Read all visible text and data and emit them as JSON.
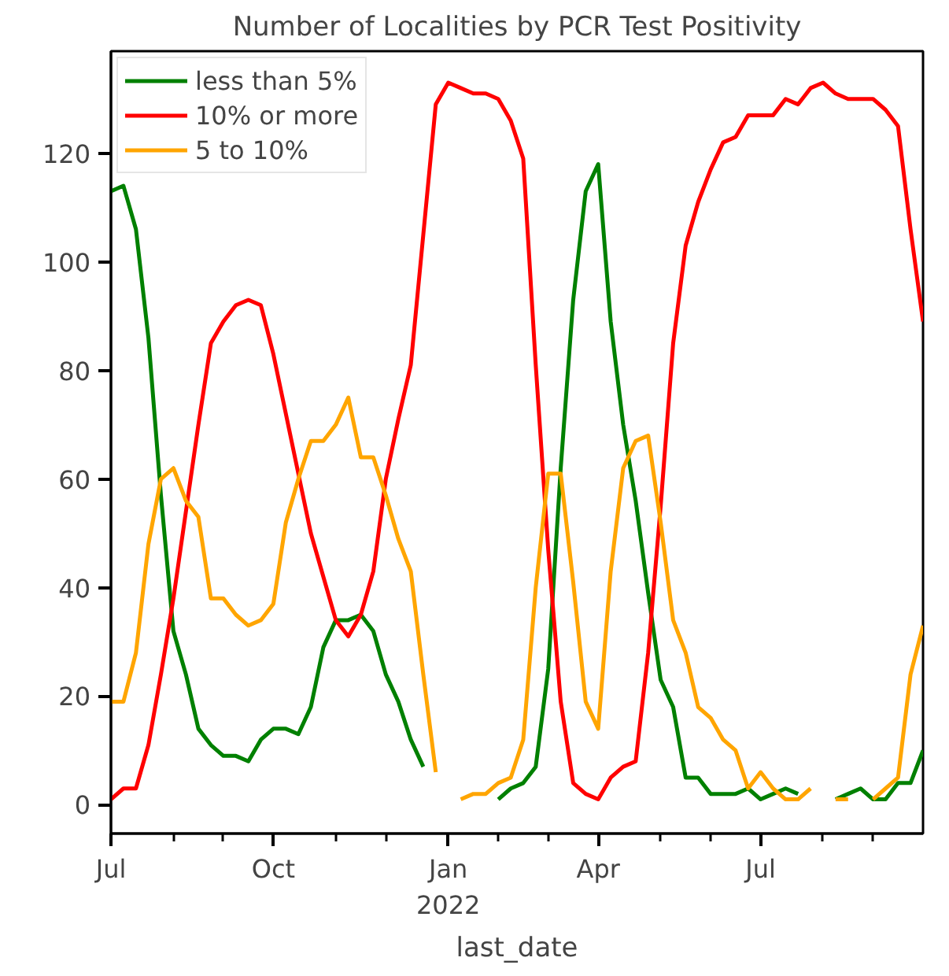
{
  "chart_data": {
    "type": "line",
    "title": "Number of Localities by PCR Test Positivity",
    "xlabel": "last_date",
    "x": [
      "2021-07-04",
      "2021-07-11",
      "2021-07-18",
      "2021-07-25",
      "2021-08-01",
      "2021-08-08",
      "2021-08-15",
      "2021-08-22",
      "2021-08-29",
      "2021-09-05",
      "2021-09-12",
      "2021-09-19",
      "2021-09-26",
      "2021-10-03",
      "2021-10-10",
      "2021-10-17",
      "2021-10-24",
      "2021-10-31",
      "2021-11-07",
      "2021-11-14",
      "2021-11-21",
      "2021-11-28",
      "2021-12-05",
      "2021-12-12",
      "2021-12-19",
      "2021-12-26",
      "2022-01-02",
      "2022-01-09",
      "2022-01-16",
      "2022-01-23",
      "2022-01-30",
      "2022-02-06",
      "2022-02-13",
      "2022-02-20",
      "2022-02-27",
      "2022-03-06",
      "2022-03-13",
      "2022-03-20",
      "2022-03-27",
      "2022-04-03",
      "2022-04-10",
      "2022-04-17",
      "2022-04-24",
      "2022-05-01",
      "2022-05-08",
      "2022-05-15",
      "2022-05-22",
      "2022-05-29",
      "2022-06-05",
      "2022-06-12",
      "2022-06-19",
      "2022-06-26",
      "2022-07-03",
      "2022-07-10",
      "2022-07-17",
      "2022-07-24",
      "2022-07-31",
      "2022-08-07",
      "2022-08-14",
      "2022-08-21",
      "2022-08-28",
      "2022-09-04",
      "2022-09-11",
      "2022-09-18",
      "2022-09-25",
      "2022-10-02"
    ],
    "series": [
      {
        "name": "less than 5%",
        "color": "#008000",
        "values": [
          113,
          114,
          106,
          86,
          57,
          32,
          24,
          14,
          11,
          9,
          9,
          8,
          12,
          14,
          14,
          13,
          18,
          29,
          34,
          34,
          35,
          32,
          24,
          19,
          12,
          7,
          null,
          null,
          null,
          null,
          null,
          1,
          3,
          4,
          7,
          25,
          62,
          93,
          113,
          118,
          89,
          70,
          56,
          39,
          23,
          18,
          5,
          5,
          2,
          2,
          2,
          3,
          1,
          2,
          3,
          2,
          null,
          null,
          1,
          2,
          3,
          1,
          1,
          4,
          4,
          10
        ]
      },
      {
        "name": "10% or more",
        "color": "#ff0000",
        "values": [
          1,
          3,
          3,
          11,
          24,
          38,
          54,
          70,
          85,
          89,
          92,
          93,
          92,
          83,
          72,
          61,
          50,
          42,
          34,
          31,
          35,
          43,
          60,
          71,
          81,
          105,
          129,
          133,
          132,
          131,
          131,
          130,
          126,
          119,
          81,
          47,
          19,
          4,
          2,
          1,
          5,
          7,
          8,
          28,
          55,
          85,
          103,
          111,
          117,
          122,
          123,
          127,
          127,
          127,
          130,
          129,
          132,
          133,
          131,
          130,
          130,
          130,
          128,
          125,
          106,
          89
        ]
      },
      {
        "name": "5 to 10%",
        "color": "#ffa500",
        "values": [
          19,
          19,
          28,
          48,
          60,
          62,
          56,
          53,
          38,
          38,
          35,
          33,
          34,
          37,
          52,
          60,
          67,
          67,
          70,
          75,
          64,
          64,
          57,
          49,
          43,
          24,
          6,
          null,
          1,
          2,
          2,
          4,
          5,
          12,
          40,
          61,
          61,
          41,
          19,
          14,
          43,
          62,
          67,
          68,
          52,
          34,
          28,
          18,
          16,
          12,
          10,
          3,
          6,
          3,
          1,
          1,
          3,
          null,
          1,
          1,
          null,
          1,
          3,
          5,
          24,
          33
        ]
      }
    ],
    "xlim": [
      "2021-07-04",
      "2022-10-02"
    ],
    "xticks": [
      {
        "value": "2021-07-04",
        "label": "Jul"
      },
      {
        "value": "2021-08-08",
        "label": null
      },
      {
        "value": "2021-09-05",
        "label": null
      },
      {
        "value": "2021-10-03",
        "label": "Oct"
      },
      {
        "value": "2021-11-07",
        "label": null
      },
      {
        "value": "2021-12-05",
        "label": null
      },
      {
        "value": "2022-01-09",
        "label": "Jan\n2022"
      },
      {
        "value": "2022-02-06",
        "label": null
      },
      {
        "value": "2022-03-06",
        "label": null
      },
      {
        "value": "2022-04-03",
        "label": "Apr"
      },
      {
        "value": "2022-05-08",
        "label": null
      },
      {
        "value": "2022-06-05",
        "label": null
      },
      {
        "value": "2022-07-03",
        "label": "Jul"
      },
      {
        "value": "2022-08-07",
        "label": null
      },
      {
        "value": "2022-09-04",
        "label": null
      }
    ],
    "ylim": [
      -5.3,
      138.8
    ],
    "yticks": [
      0,
      20,
      40,
      60,
      80,
      100,
      120
    ],
    "grid": false,
    "legend": "top left",
    "marker": "none",
    "line_style": "solid"
  }
}
